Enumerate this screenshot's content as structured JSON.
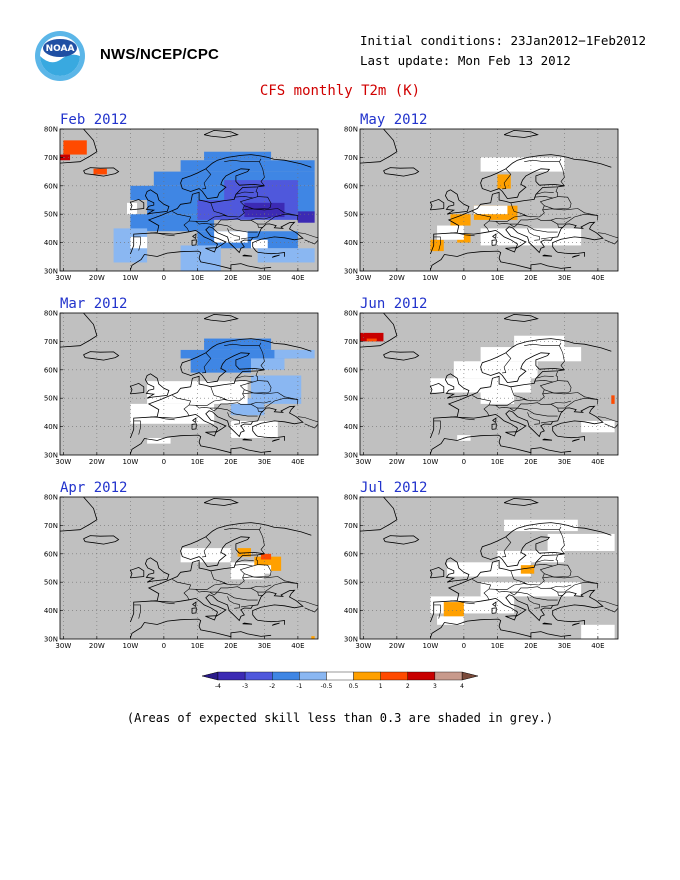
{
  "header": {
    "org": "NWS/NCEP/CPC",
    "initial_conditions": "Initial conditions: 23Jan2012−1Feb2012",
    "last_update": "Last update: Mon Feb 13 2012",
    "title": "CFS monthly T2m (K)",
    "logo_icon": "noaa-logo-icon",
    "logo_text": "NOAA"
  },
  "axes": {
    "lat_labels": [
      "80N",
      "70N",
      "60N",
      "50N",
      "40N",
      "30N"
    ],
    "lon_labels": [
      "30W",
      "20W",
      "10W",
      "0",
      "10E",
      "20E",
      "30E",
      "40E"
    ]
  },
  "colors": {
    "grey": "#c0c0c0",
    "neutral": "#ffffff",
    "c_m4": "#3c2ab4",
    "c_m3": "#4f58dc",
    "c_m2": "#3f86e4",
    "c_m1": "#8ab7f2",
    "c_p05": "#ffa000",
    "c_p1": "#ff4a00",
    "c_p2": "#c80000",
    "c_p3": "#c89a8c",
    "c_p4": "#7a4a3a"
  },
  "panels": [
    {
      "title": "Feb 2012",
      "cells": [
        {
          "c": "c_p1",
          "lat": 76,
          "lon": -30,
          "w": 7,
          "h": 5
        },
        {
          "c": "c_p2",
          "lat": 71,
          "lon": -31,
          "w": 3,
          "h": 2
        },
        {
          "c": "c_p1",
          "lat": 66,
          "lon": -21,
          "w": 4,
          "h": 2
        },
        {
          "c": "c_m2",
          "lat": 72,
          "lon": 12,
          "w": 20,
          "h": 3
        },
        {
          "c": "c_m2",
          "lat": 69,
          "lon": 5,
          "w": 40,
          "h": 4
        },
        {
          "c": "c_m2",
          "lat": 65,
          "lon": -3,
          "w": 48,
          "h": 5
        },
        {
          "c": "c_m2",
          "lat": 60,
          "lon": -10,
          "w": 55,
          "h": 5
        },
        {
          "c": "c_m2",
          "lat": 55,
          "lon": -5,
          "w": 50,
          "h": 5
        },
        {
          "c": "c_m2",
          "lat": 50,
          "lon": -10,
          "w": 25,
          "h": 6
        },
        {
          "c": "c_m2",
          "lat": 44,
          "lon": 10,
          "w": 30,
          "h": 6
        },
        {
          "c": "c_m1",
          "lat": 45,
          "lon": -15,
          "w": 10,
          "h": 12
        },
        {
          "c": "c_m1",
          "lat": 39,
          "lon": 5,
          "w": 12,
          "h": 9
        },
        {
          "c": "c_m1",
          "lat": 38,
          "lon": 28,
          "w": 17,
          "h": 5
        },
        {
          "c": "c_m3",
          "lat": 62,
          "lon": 18,
          "w": 22,
          "h": 8
        },
        {
          "c": "c_m3",
          "lat": 55,
          "lon": 10,
          "w": 30,
          "h": 7
        },
        {
          "c": "c_m4",
          "lat": 54,
          "lon": 24,
          "w": 12,
          "h": 5
        },
        {
          "c": "c_m4",
          "lat": 51,
          "lon": 40,
          "w": 5,
          "h": 4
        },
        {
          "c": "neutral",
          "lat": 54,
          "lon": -11,
          "w": 3,
          "h": 4
        },
        {
          "c": "neutral",
          "lat": 42,
          "lon": -10,
          "w": 5,
          "h": 4
        },
        {
          "c": "neutral",
          "lat": 44,
          "lon": 15,
          "w": 10,
          "h": 4
        },
        {
          "c": "neutral",
          "lat": 41,
          "lon": 26,
          "w": 5,
          "h": 3
        }
      ]
    },
    {
      "title": "May 2012",
      "cells": [
        {
          "c": "c_p05",
          "lat": 64,
          "lon": 10,
          "w": 4,
          "h": 5
        },
        {
          "c": "c_p05",
          "lat": 53,
          "lon": 3,
          "w": 13,
          "h": 5
        },
        {
          "c": "c_p05",
          "lat": 50,
          "lon": -4,
          "w": 6,
          "h": 4
        },
        {
          "c": "c_p05",
          "lat": 43,
          "lon": -2,
          "w": 4,
          "h": 3
        },
        {
          "c": "c_p05",
          "lat": 41,
          "lon": -10,
          "w": 4,
          "h": 4
        },
        {
          "c": "neutral",
          "lat": 53,
          "lon": 3,
          "w": 10,
          "h": 3
        },
        {
          "c": "neutral",
          "lat": 46,
          "lon": -8,
          "w": 8,
          "h": 5
        },
        {
          "c": "neutral",
          "lat": 70,
          "lon": 5,
          "w": 25,
          "h": 5
        },
        {
          "c": "neutral",
          "lat": 45,
          "lon": 5,
          "w": 30,
          "h": 6
        }
      ]
    },
    {
      "title": "Mar 2012",
      "cells": [
        {
          "c": "c_m2",
          "lat": 71,
          "lon": 12,
          "w": 20,
          "h": 4
        },
        {
          "c": "c_m2",
          "lat": 67,
          "lon": 5,
          "w": 35,
          "h": 3
        },
        {
          "c": "c_m2",
          "lat": 64,
          "lon": 8,
          "w": 18,
          "h": 5
        },
        {
          "c": "c_m1",
          "lat": 67,
          "lon": 33,
          "w": 12,
          "h": 3
        },
        {
          "c": "c_m1",
          "lat": 64,
          "lon": 26,
          "w": 10,
          "h": 4
        },
        {
          "c": "c_m1",
          "lat": 58,
          "lon": 26,
          "w": 15,
          "h": 10
        },
        {
          "c": "c_m1",
          "lat": 50,
          "lon": 20,
          "w": 10,
          "h": 6
        },
        {
          "c": "neutral",
          "lat": 56,
          "lon": -5,
          "w": 30,
          "h": 8
        },
        {
          "c": "neutral",
          "lat": 48,
          "lon": -10,
          "w": 25,
          "h": 7
        },
        {
          "c": "neutral",
          "lat": 42,
          "lon": 20,
          "w": 14,
          "h": 6
        },
        {
          "c": "neutral",
          "lat": 36,
          "lon": -5,
          "w": 7,
          "h": 2
        }
      ]
    },
    {
      "title": "Jun 2012",
      "cells": [
        {
          "c": "c_p2",
          "lat": 73,
          "lon": -31,
          "w": 7,
          "h": 3
        },
        {
          "c": "c_p1",
          "lat": 71,
          "lon": -29,
          "w": 3,
          "h": 1
        },
        {
          "c": "neutral",
          "lat": 72,
          "lon": 15,
          "w": 15,
          "h": 4
        },
        {
          "c": "neutral",
          "lat": 68,
          "lon": 5,
          "w": 30,
          "h": 5
        },
        {
          "c": "neutral",
          "lat": 63,
          "lon": -3,
          "w": 25,
          "h": 6
        },
        {
          "c": "neutral",
          "lat": 57,
          "lon": -10,
          "w": 30,
          "h": 5
        },
        {
          "c": "neutral",
          "lat": 52,
          "lon": 5,
          "w": 10,
          "h": 4
        },
        {
          "c": "neutral",
          "lat": 42,
          "lon": 35,
          "w": 10,
          "h": 4
        },
        {
          "c": "neutral",
          "lat": 37,
          "lon": -2,
          "w": 4,
          "h": 2
        },
        {
          "c": "c_p1",
          "lat": 51,
          "lon": 44,
          "w": 1,
          "h": 3
        }
      ]
    },
    {
      "title": "Apr 2012",
      "cells": [
        {
          "c": "neutral",
          "lat": 62,
          "lon": 5,
          "w": 15,
          "h": 5
        },
        {
          "c": "neutral",
          "lat": 57,
          "lon": 20,
          "w": 10,
          "h": 6
        },
        {
          "c": "c_p05",
          "lat": 62,
          "lon": 22,
          "w": 4,
          "h": 3
        },
        {
          "c": "c_p05",
          "lat": 59,
          "lon": 27,
          "w": 8,
          "h": 5
        },
        {
          "c": "c_p1",
          "lat": 60,
          "lon": 29,
          "w": 3,
          "h": 2
        },
        {
          "c": "neutral",
          "lat": 56,
          "lon": 27,
          "w": 5,
          "h": 3
        },
        {
          "c": "c_p05",
          "lat": 31,
          "lon": 44,
          "w": 1,
          "h": 1
        }
      ]
    },
    {
      "title": "Jul 2012",
      "cells": [
        {
          "c": "neutral",
          "lat": 72,
          "lon": 12,
          "w": 22,
          "h": 4
        },
        {
          "c": "neutral",
          "lat": 67,
          "lon": 25,
          "w": 20,
          "h": 6
        },
        {
          "c": "neutral",
          "lat": 61,
          "lon": 10,
          "w": 20,
          "h": 4
        },
        {
          "c": "neutral",
          "lat": 57,
          "lon": -5,
          "w": 25,
          "h": 5
        },
        {
          "c": "neutral",
          "lat": 50,
          "lon": 5,
          "w": 30,
          "h": 5
        },
        {
          "c": "neutral",
          "lat": 45,
          "lon": -10,
          "w": 25,
          "h": 6
        },
        {
          "c": "neutral",
          "lat": 38,
          "lon": -8,
          "w": 8,
          "h": 3
        },
        {
          "c": "neutral",
          "lat": 35,
          "lon": 35,
          "w": 10,
          "h": 5
        },
        {
          "c": "c_p05",
          "lat": 56,
          "lon": 17,
          "w": 4,
          "h": 3
        },
        {
          "c": "c_p05",
          "lat": 43,
          "lon": -6,
          "w": 6,
          "h": 5
        }
      ]
    }
  ],
  "colorbar": {
    "labels": [
      "-4",
      "-3",
      "-2",
      "-1",
      "-0.5",
      "0.5",
      "1",
      "2",
      "3",
      "4"
    ],
    "colors": [
      "c_m4",
      "c_m3",
      "c_m2",
      "c_m1",
      "neutral",
      "c_p05",
      "c_p1",
      "c_p2",
      "c_p3"
    ]
  },
  "note": "(Areas of expected skill less than 0.3 are shaded in grey.)"
}
